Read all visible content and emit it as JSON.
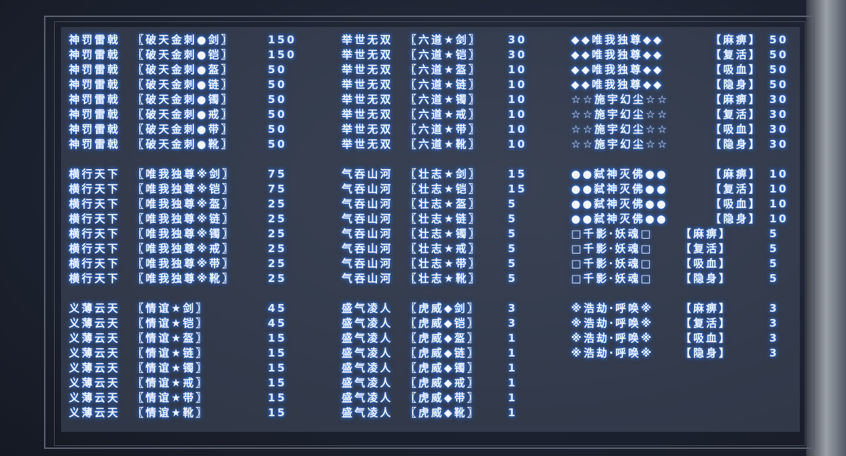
{
  "blocks": [
    {
      "rows": [
        [
          "神罚雷戟",
          "〖破天金刺●剑〗",
          "150"
        ],
        [
          "神罚雷戟",
          "〖破天金刺●铠〗",
          "150"
        ],
        [
          "神罚雷戟",
          "〖破天金刺●盔〗",
          "50"
        ],
        [
          "神罚雷戟",
          "〖破天金刺●链〗",
          "50"
        ],
        [
          "神罚雷戟",
          "〖破天金刺●镯〗",
          "50"
        ],
        [
          "神罚雷戟",
          "〖破天金刺●戒〗",
          "50"
        ],
        [
          "神罚雷戟",
          "〖破天金刺●带〗",
          "50"
        ],
        [
          "神罚雷戟",
          "〖破天金刺●靴〗",
          "50"
        ]
      ]
    },
    {
      "rows": [
        [
          "举世无双",
          "〖六道★剑〗",
          "30"
        ],
        [
          "举世无双",
          "〖六道★铠〗",
          "30"
        ],
        [
          "举世无双",
          "〖六道★盔〗",
          "10"
        ],
        [
          "举世无双",
          "〖六道★链〗",
          "10"
        ],
        [
          "举世无双",
          "〖六道★镯〗",
          "10"
        ],
        [
          "举世无双",
          "〖六道★戒〗",
          "10"
        ],
        [
          "举世无双",
          "〖六道★带〗",
          "10"
        ],
        [
          "举世无双",
          "〖六道★靴〗",
          "10"
        ]
      ]
    },
    {
      "rows": [
        [
          "◆◆唯我独尊◆◆",
          "【麻痹】",
          "50"
        ],
        [
          "◆◆唯我独尊◆◆",
          "【复活】",
          "50"
        ],
        [
          "◆◆唯我独尊◆◆",
          "【吸血】",
          "50"
        ],
        [
          "◆◆唯我独尊◆◆",
          "【隐身】",
          "50"
        ],
        [
          "☆☆施宇幻尘☆☆",
          "【麻痹】",
          "30"
        ],
        [
          "☆☆施宇幻尘☆☆",
          "【复活】",
          "30"
        ],
        [
          "☆☆施宇幻尘☆☆",
          "【吸血】",
          "30"
        ],
        [
          "☆☆施宇幻尘☆☆",
          "【隐身】",
          "30"
        ]
      ]
    },
    {
      "rows": [
        [
          "横行天下",
          "〖唯我独尊※剑〗",
          "75"
        ],
        [
          "横行天下",
          "〖唯我独尊※铠〗",
          "75"
        ],
        [
          "横行天下",
          "〖唯我独尊※盔〗",
          "25"
        ],
        [
          "横行天下",
          "〖唯我独尊※链〗",
          "25"
        ],
        [
          "横行天下",
          "〖唯我独尊※镯〗",
          "25"
        ],
        [
          "横行天下",
          "〖唯我独尊※戒〗",
          "25"
        ],
        [
          "横行天下",
          "〖唯我独尊※带〗",
          "25"
        ],
        [
          "横行天下",
          "〖唯我独尊※靴〗",
          "25"
        ]
      ]
    },
    {
      "rows": [
        [
          "气吞山河",
          "〖壮志★剑〗",
          "15"
        ],
        [
          "气吞山河",
          "〖壮志★铠〗",
          "15"
        ],
        [
          "气吞山河",
          "〖壮志★盔〗",
          "5"
        ],
        [
          "气吞山河",
          "〖壮志★链〗",
          "5"
        ],
        [
          "气吞山河",
          "〖壮志★镯〗",
          "5"
        ],
        [
          "气吞山河",
          "〖壮志★戒〗",
          "5"
        ],
        [
          "气吞山河",
          "〖壮志★带〗",
          "5"
        ],
        [
          "气吞山河",
          "〖壮志★靴〗",
          "5"
        ]
      ]
    },
    {
      "rows": [
        [
          "●●弑神灭佛●●",
          "【麻痹】",
          "10"
        ],
        [
          "●●弑神灭佛●●",
          "【复活】",
          "10"
        ],
        [
          "●●弑神灭佛●●",
          "【吸血】",
          "10"
        ],
        [
          "●●弑神灭佛●●",
          "【隐身】",
          "10"
        ],
        [
          "□千影·妖魂□",
          "【麻痹】",
          "5"
        ],
        [
          "□千影·妖魂□",
          "【复活】",
          "5"
        ],
        [
          "□千影·妖魂□",
          "【吸血】",
          "5"
        ],
        [
          "□千影·妖魂□",
          "【隐身】",
          "5"
        ]
      ]
    },
    {
      "rows": [
        [
          "义薄云天",
          "〖情谊★剑〗",
          "45"
        ],
        [
          "义薄云天",
          "〖情谊★铠〗",
          "45"
        ],
        [
          "义薄云天",
          "〖情谊★盔〗",
          "15"
        ],
        [
          "义薄云天",
          "〖情谊★链〗",
          "15"
        ],
        [
          "义薄云天",
          "〖情谊★镯〗",
          "15"
        ],
        [
          "义薄云天",
          "〖情谊★戒〗",
          "15"
        ],
        [
          "义薄云天",
          "〖情谊★带〗",
          "15"
        ],
        [
          "义薄云天",
          "〖情谊★靴〗",
          "15"
        ]
      ]
    },
    {
      "rows": [
        [
          "盛气凌人",
          "〖虎威◆剑〗",
          "3"
        ],
        [
          "盛气凌人",
          "〖虎威◆铠〗",
          "3"
        ],
        [
          "盛气凌人",
          "〖虎威◆盔〗",
          "1"
        ],
        [
          "盛气凌人",
          "〖虎威◆链〗",
          "1"
        ],
        [
          "盛气凌人",
          "〖虎威◆镯〗",
          "1"
        ],
        [
          "盛气凌人",
          "〖虎威◆戒〗",
          "1"
        ],
        [
          "盛气凌人",
          "〖虎威◆带〗",
          "1"
        ],
        [
          "盛气凌人",
          "〖虎威◆靴〗",
          "1"
        ]
      ]
    },
    {
      "rows": [
        [
          "※浩劫·呼唤※",
          "【麻痹】",
          "3"
        ],
        [
          "※浩劫·呼唤※",
          "【复活】",
          "3"
        ],
        [
          "※浩劫·呼唤※",
          "【吸血】",
          "3"
        ],
        [
          "※浩劫·呼唤※",
          "【隐身】",
          "3"
        ]
      ]
    }
  ]
}
